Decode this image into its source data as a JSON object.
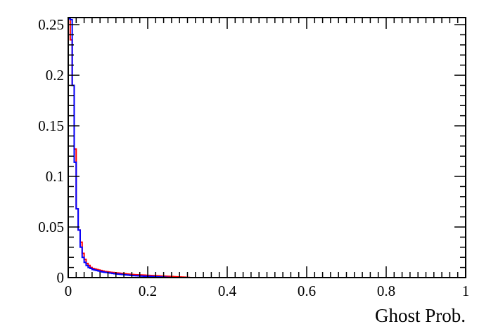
{
  "chart_data": {
    "type": "line",
    "title": "",
    "xlabel": "Ghost Prob.",
    "ylabel": "",
    "xlim": [
      0,
      1
    ],
    "ylim": [
      0,
      0.257
    ],
    "x_ticks": [
      {
        "value": 0,
        "label": "0"
      },
      {
        "value": 0.2,
        "label": "0.2"
      },
      {
        "value": 0.4,
        "label": "0.4"
      },
      {
        "value": 0.6,
        "label": "0.6"
      },
      {
        "value": 0.8,
        "label": "0.8"
      },
      {
        "value": 1,
        "label": "1"
      }
    ],
    "y_ticks": [
      {
        "value": 0,
        "label": "0"
      },
      {
        "value": 0.05,
        "label": "0.05"
      },
      {
        "value": 0.1,
        "label": "0.1"
      },
      {
        "value": 0.15,
        "label": "0.15"
      },
      {
        "value": 0.2,
        "label": "0.2"
      },
      {
        "value": 0.25,
        "label": "0.25"
      }
    ],
    "x_minor_step": 0.02,
    "y_minor_step": 0.01,
    "grid": false,
    "legend": "none",
    "bin_width": 0.005,
    "series": [
      {
        "color": "#ff0000",
        "values": [
          0.256,
          0.235,
          0.19,
          0.127,
          0.068,
          0.047,
          0.035,
          0.024,
          0.018,
          0.014,
          0.012,
          0.01,
          0.009,
          0.0085,
          0.008,
          0.0075,
          0.007,
          0.0065,
          0.006,
          0.0058,
          0.0055,
          0.0052,
          0.005,
          0.0048,
          0.0046,
          0.0044,
          0.0042,
          0.004,
          0.0038,
          0.0036,
          0.0034,
          0.0032,
          0.003,
          0.0029,
          0.0028,
          0.0027,
          0.0026,
          0.0025,
          0.0024,
          0.0023,
          0.0022,
          0.0021,
          0.002,
          0.0019,
          0.0018,
          0.0017,
          0.0016,
          0.0015,
          0.0014,
          0.0013,
          0.0012,
          0.0011,
          0.001,
          0.0009,
          0.0008,
          0.0007,
          0.0006,
          0.0005,
          0.0004,
          0.0003,
          0.0002
        ]
      },
      {
        "color": "#0000ff",
        "values": [
          0.256,
          0.255,
          0.19,
          0.114,
          0.068,
          0.047,
          0.03,
          0.02,
          0.015,
          0.012,
          0.01,
          0.009,
          0.008,
          0.0075,
          0.007,
          0.0065,
          0.006,
          0.0056,
          0.0052,
          0.005,
          0.0047,
          0.0044,
          0.0041,
          0.0038,
          0.0036,
          0.0034,
          0.0032,
          0.003,
          0.0028,
          0.0026,
          0.0024,
          0.0022,
          0.002,
          0.0019,
          0.0018,
          0.0017,
          0.0016,
          0.0015,
          0.0014,
          0.0013,
          0.0012,
          0.0011,
          0.001,
          0.0009,
          0.0008,
          0.0007,
          0.0006,
          0.0005,
          0.0004,
          0.0003,
          0.0002
        ]
      }
    ]
  }
}
